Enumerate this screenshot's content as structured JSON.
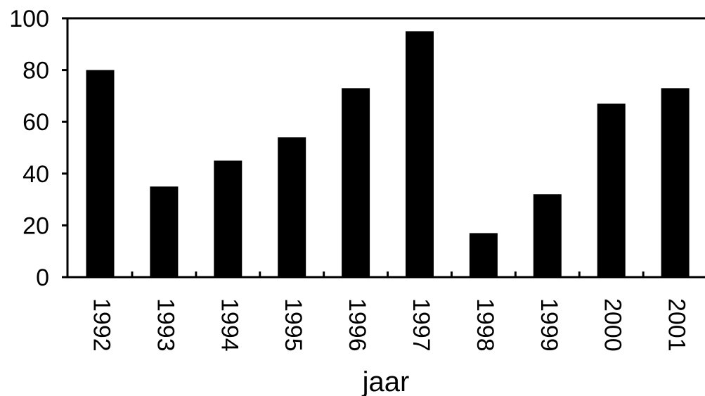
{
  "chart_data": {
    "type": "bar",
    "title": "",
    "xlabel": "jaar",
    "ylabel": "",
    "categories": [
      "1992",
      "1993",
      "1994",
      "1995",
      "1996",
      "1997",
      "1998",
      "1999",
      "2000",
      "2001"
    ],
    "series": [
      {
        "values": [
          80,
          35,
          45,
          54,
          73,
          95,
          17,
          32,
          67,
          73
        ]
      }
    ],
    "ylim": [
      0,
      100
    ],
    "yticks": [
      "0",
      "20",
      "40",
      "60",
      "80",
      "100"
    ],
    "grid": false,
    "legend": "none",
    "bar_color": "#000000",
    "axis_color": "#000000"
  }
}
